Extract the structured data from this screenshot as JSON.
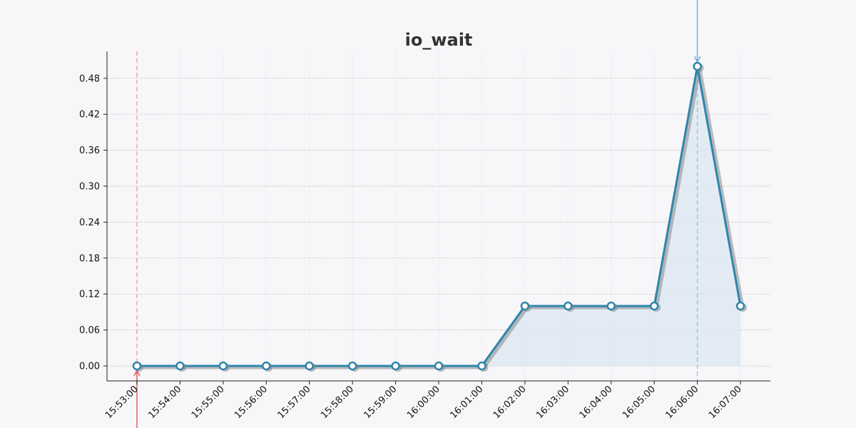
{
  "chart_data": {
    "type": "area",
    "title": "io_wait",
    "xlabel": "",
    "ylabel": "",
    "x": [
      "15:53:00",
      "15:54:00",
      "15:55:00",
      "15:56:00",
      "15:57:00",
      "15:58:00",
      "15:59:00",
      "16:00:00",
      "16:01:00",
      "16:02:00",
      "16:03:00",
      "16:04:00",
      "16:05:00",
      "16:06:00",
      "16:07:00"
    ],
    "series": [
      {
        "values": [
          0,
          0,
          0,
          0,
          0,
          0,
          0,
          0,
          0,
          0.1,
          0.1,
          0.1,
          0.1,
          0.5,
          0.1
        ]
      }
    ],
    "yticks": [
      "0.00",
      "0.06",
      "0.12",
      "0.18",
      "0.24",
      "0.30",
      "0.36",
      "0.42",
      "0.48"
    ],
    "ylim": [
      -0.025,
      0.525
    ],
    "grid": true,
    "markers": {
      "min_marker_index": 0,
      "max_marker_index": 13
    },
    "colors": {
      "line": "#2e86ab",
      "fill": "#dbe7f2",
      "shadow": "#888888",
      "grid": "#b0b0b0",
      "min_marker": "#e06060",
      "max_marker": "#6aaed6",
      "background": "#f7f7fa"
    }
  }
}
